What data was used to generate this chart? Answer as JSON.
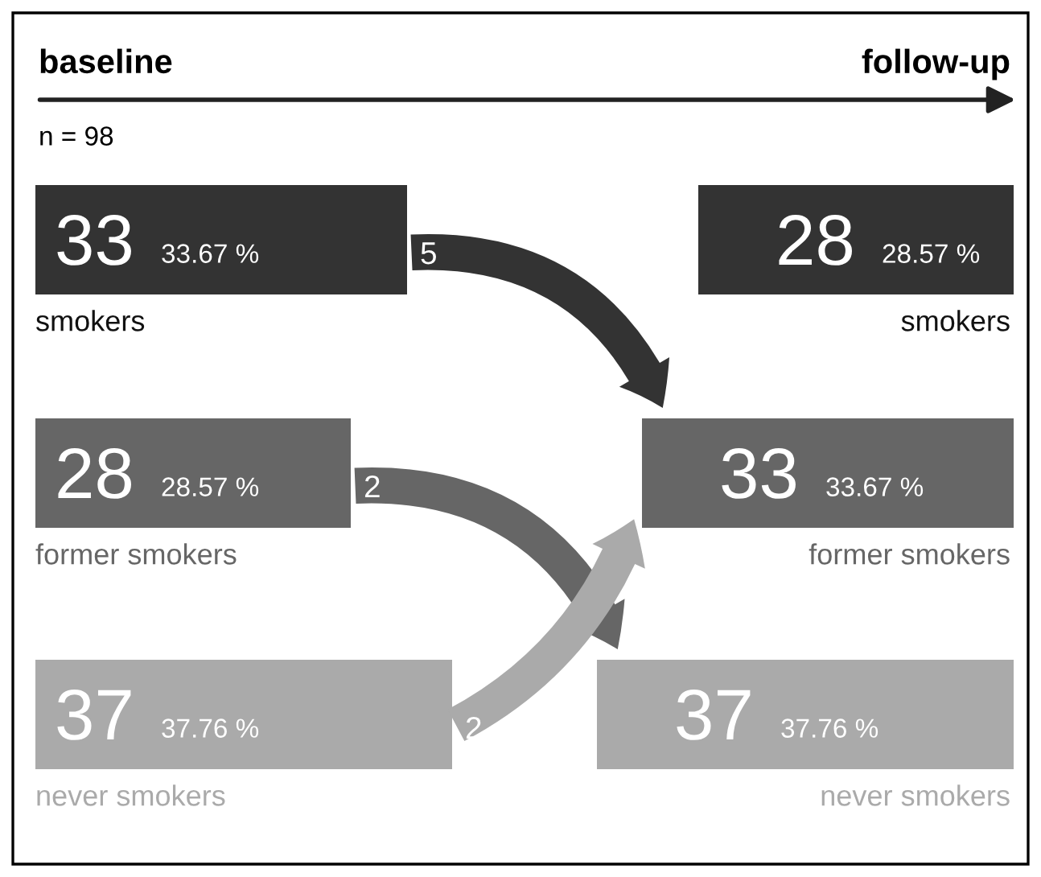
{
  "chart_data": {
    "type": "other",
    "categories": [
      "baseline",
      "follow-up"
    ],
    "data_labels": true,
    "series": [
      {
        "name": "smokers",
        "color": "#333333",
        "values": [
          33,
          28
        ]
      },
      {
        "name": "former smokers",
        "color": "#666666",
        "values": [
          28,
          33
        ]
      },
      {
        "name": "never smokers",
        "color": "#aaaaaa",
        "values": [
          37,
          37
        ]
      }
    ],
    "annotations": [
      "n = 98",
      {
        "text": "33.67 %",
        "x": "baseline",
        "y": "smokers"
      },
      {
        "text": "28.57 %",
        "x": "follow-up",
        "y": "smokers"
      },
      {
        "text": "28.57 %",
        "x": "baseline",
        "y": "former smokers"
      },
      {
        "text": "33.67 %",
        "x": "follow-up",
        "y": "former smokers"
      },
      {
        "text": "37.76 %",
        "x": "baseline",
        "y": "never smokers"
      },
      {
        "text": "37.76 %",
        "x": "follow-up",
        "y": "never smokers"
      },
      {
        "text": "5",
        "x": "smokers",
        "y": "former smokers"
      },
      {
        "text": "2",
        "x": "former smokers",
        "y": "never smokers"
      },
      {
        "text": "2",
        "x": "never smokers",
        "y": "former smokers"
      }
    ]
  }
}
